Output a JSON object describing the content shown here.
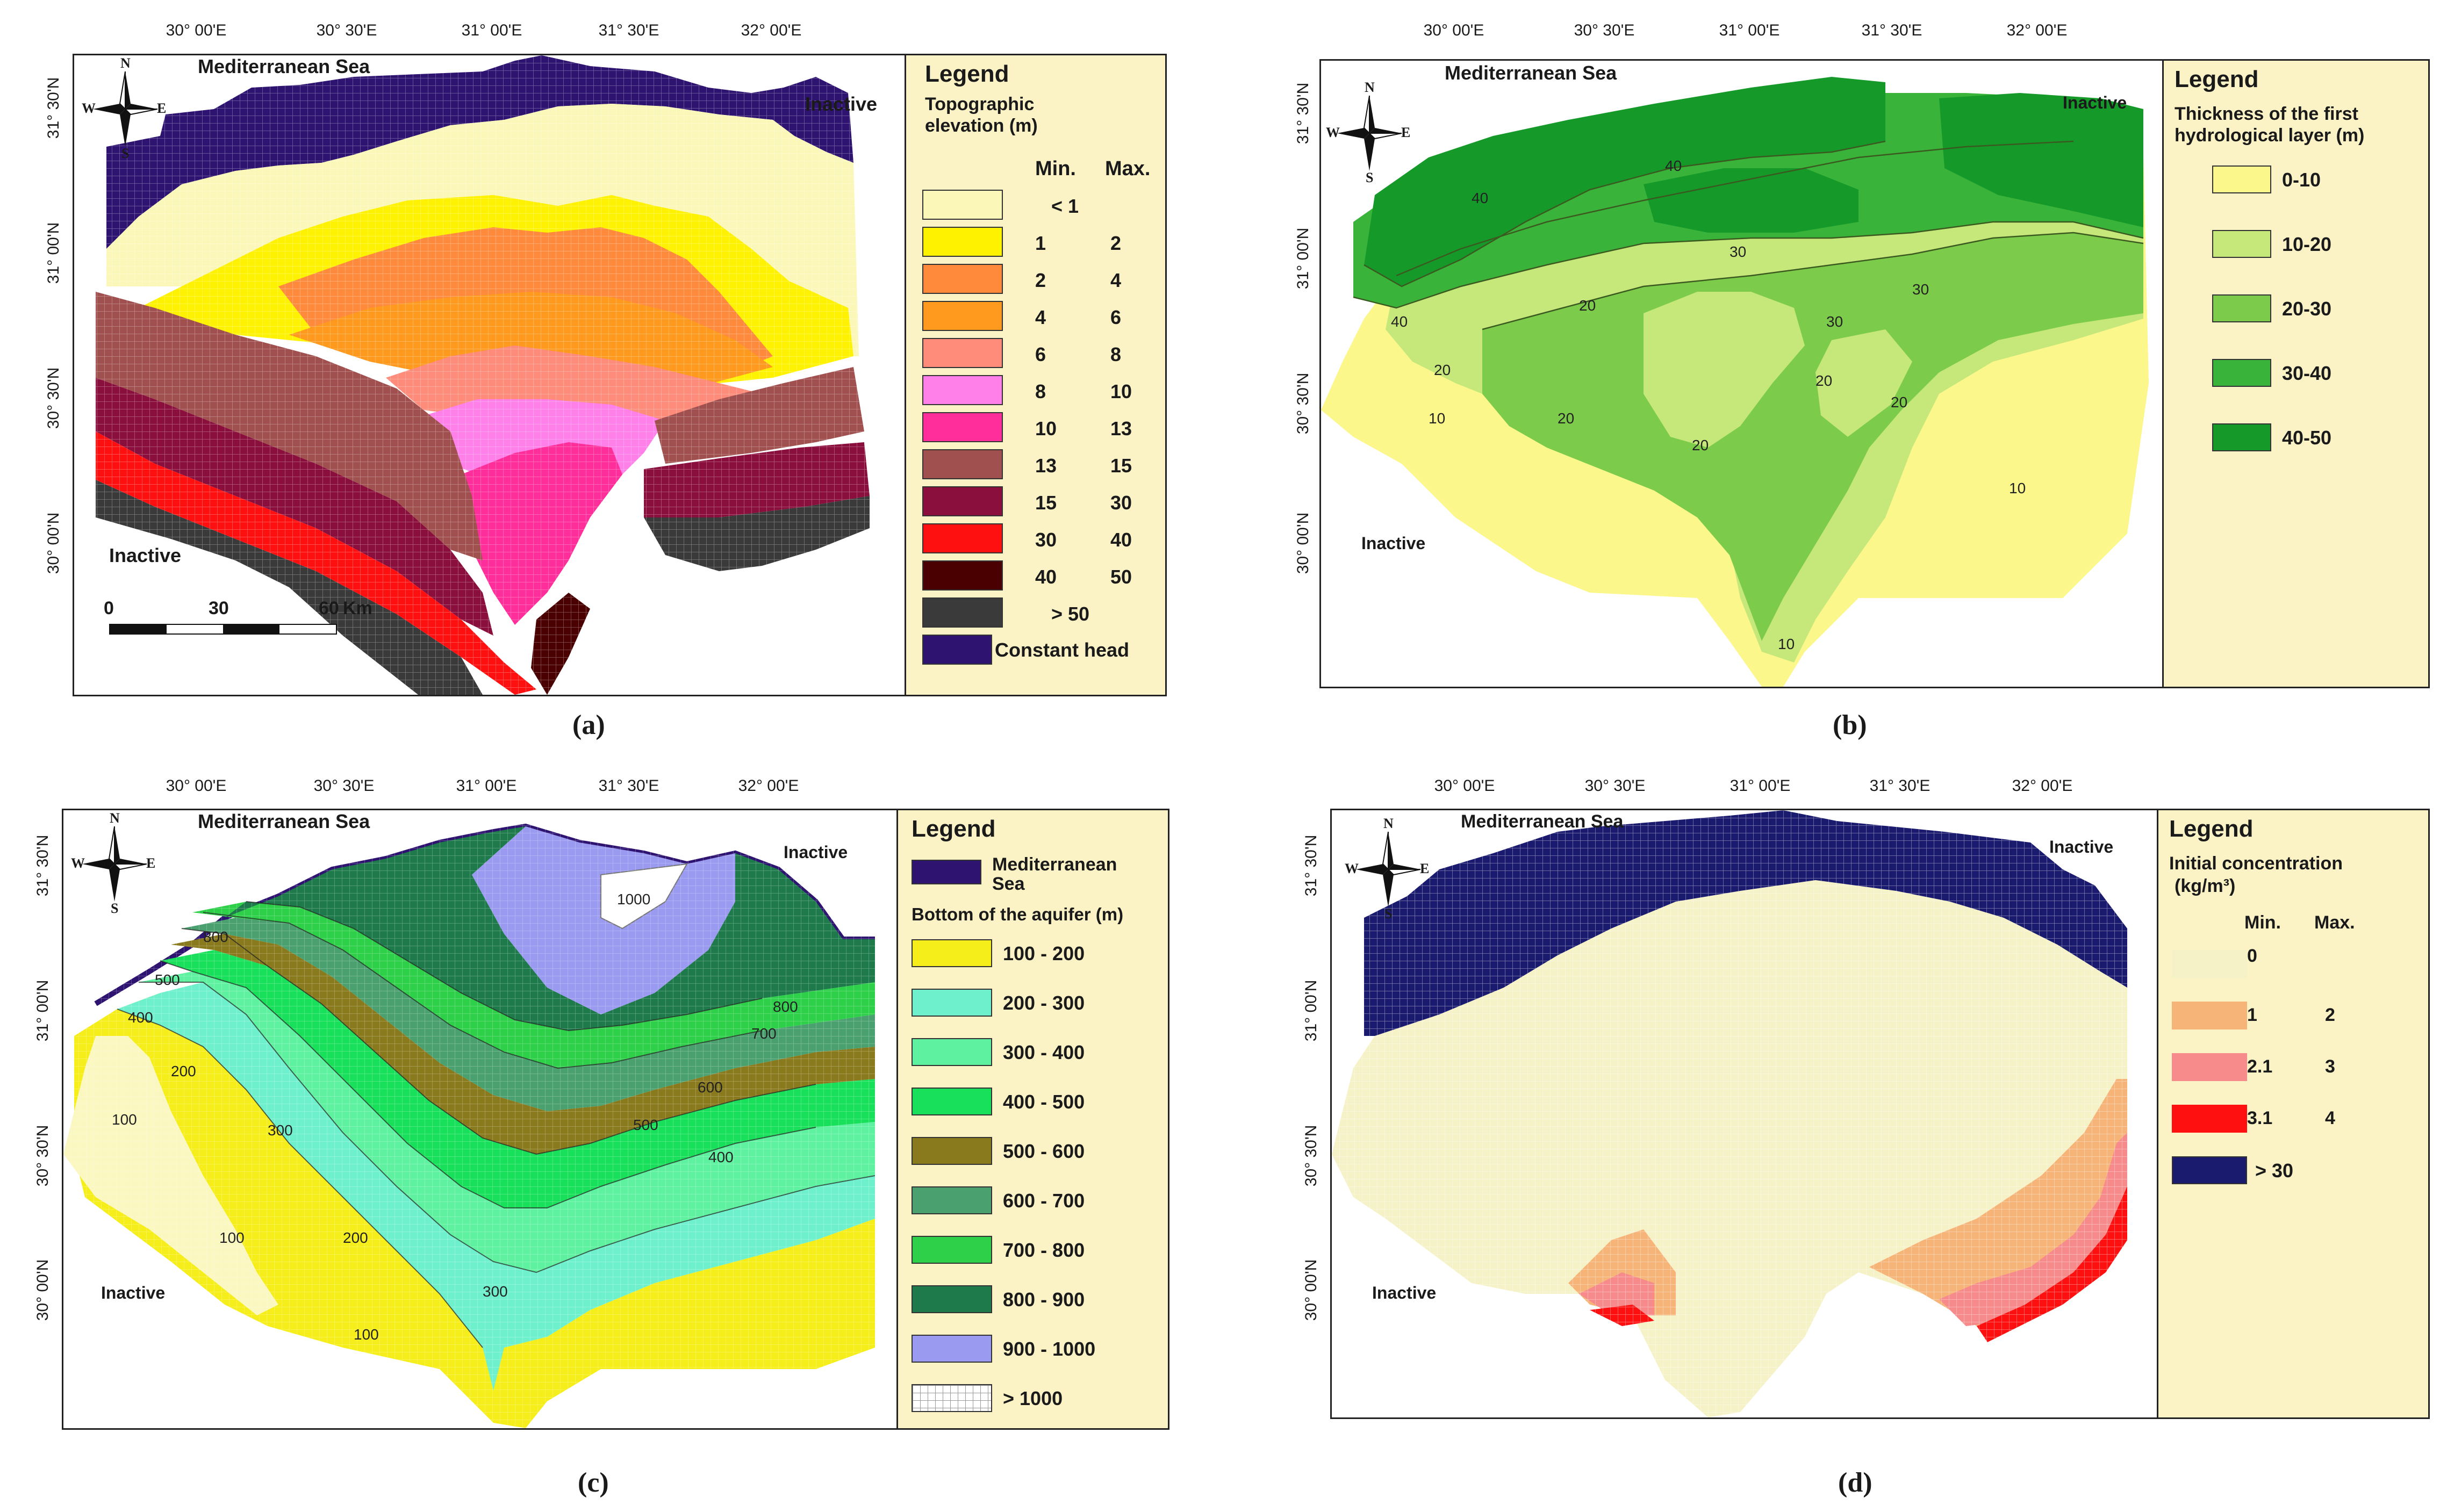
{
  "panels": [
    {
      "id": "a",
      "label": "(a)",
      "sea_label": "Mediterranean Sea",
      "inactive_top": "Inactive",
      "inactive_left": "Inactive",
      "lon_ticks": [
        "30° 00'E",
        "30° 30'E",
        "31° 00'E",
        "31° 30'E",
        "32° 00'E"
      ],
      "lat_ticks": [
        "31° 30'N",
        "31° 00'N",
        "30° 30'N",
        "30° 00'N"
      ],
      "scale": {
        "labels": [
          "0",
          "30",
          "60"
        ],
        "unit": "Km"
      },
      "legend": {
        "title": "Legend",
        "subtitle": [
          "Topographic",
          "elevation (m)"
        ],
        "col_min": "Min.",
        "col_max": "Max.",
        "items": [
          {
            "min": "< 1",
            "max": "",
            "color": "#fbf7b8"
          },
          {
            "min": "1",
            "max": "2",
            "color": "#fff200"
          },
          {
            "min": "2",
            "max": "4",
            "color": "#ff8a3c"
          },
          {
            "min": "4",
            "max": "6",
            "color": "#ff9a1f"
          },
          {
            "min": "6",
            "max": "8",
            "color": "#ff8c7a"
          },
          {
            "min": "8",
            "max": "10",
            "color": "#ff80e8"
          },
          {
            "min": "10",
            "max": "13",
            "color": "#ff2e9a"
          },
          {
            "min": "13",
            "max": "15",
            "color": "#a0504e"
          },
          {
            "min": "15",
            "max": "30",
            "color": "#8a0f3c"
          },
          {
            "min": "30",
            "max": "40",
            "color": "#ff1010"
          },
          {
            "min": "40",
            "max": "50",
            "color": "#4a0000"
          },
          {
            "min": "> 50",
            "max": "",
            "color": "#3a3a3a"
          },
          {
            "min": "Constant head",
            "max": "",
            "color": "#2e1470"
          }
        ]
      }
    },
    {
      "id": "b",
      "label": "(b)",
      "sea_label": "Mediterranean Sea",
      "inactive_top": "Inactive",
      "inactive_left": "Inactive",
      "lon_ticks": [
        "30° 00'E",
        "30° 30'E",
        "31° 00'E",
        "31° 30'E",
        "32° 00'E"
      ],
      "lat_ticks": [
        "31° 30'N",
        "31° 00'N",
        "30° 30'N",
        "30° 00'N"
      ],
      "contours": [
        "40",
        "40",
        "30",
        "30",
        "20",
        "20",
        "20",
        "20",
        "10",
        "10",
        "10",
        "20",
        "20",
        "30",
        "40"
      ],
      "legend": {
        "title": "Legend",
        "subtitle": [
          "Thickness of the first",
          "hydrological layer (m)"
        ],
        "items": [
          {
            "label": "0-10",
            "color": "#fbf78a"
          },
          {
            "label": "10-20",
            "color": "#c6e87a"
          },
          {
            "label": "20-30",
            "color": "#7ccb4a"
          },
          {
            "label": "30-40",
            "color": "#3ab33a"
          },
          {
            "label": "40-50",
            "color": "#159a2a"
          }
        ]
      }
    },
    {
      "id": "c",
      "label": "(c)",
      "sea_label": "Mediterranean Sea",
      "inactive_top": "Inactive",
      "inactive_left": "Inactive",
      "lon_ticks": [
        "30° 00'E",
        "30° 30'E",
        "31° 00'E",
        "31° 30'E",
        "32° 00'E"
      ],
      "lat_ticks": [
        "31° 30'N",
        "31° 00'N",
        "30° 30'N",
        "30° 00'N"
      ],
      "contours": [
        "100",
        "100",
        "100",
        "200",
        "200",
        "300",
        "300",
        "400",
        "400",
        "500",
        "500",
        "600",
        "700",
        "800",
        "800",
        "1000"
      ],
      "legend": {
        "title": "Legend",
        "sea_item": [
          "Mediterranean",
          "Sea"
        ],
        "sea_color": "#2e1470",
        "subtitle": "Bottom of the aquifer (m)",
        "items": [
          {
            "label": "100 - 200",
            "color": "#f5ee1a"
          },
          {
            "label": "200 - 300",
            "color": "#6ff0cc"
          },
          {
            "label": "300 - 400",
            "color": "#5ef2a0"
          },
          {
            "label": "400 - 500",
            "color": "#19e05a"
          },
          {
            "label": "500 - 600",
            "color": "#8a7a1e"
          },
          {
            "label": "600 - 700",
            "color": "#4aa06e"
          },
          {
            "label": "700 - 800",
            "color": "#2ed04a"
          },
          {
            "label": "800 - 900",
            "color": "#1e7a4a"
          },
          {
            "label": "900 - 1000",
            "color": "#9a9af0"
          },
          {
            "label": "> 1000",
            "color": "#ffffff"
          }
        ]
      }
    },
    {
      "id": "d",
      "label": "(d)",
      "sea_label": "Mediterranean Sea",
      "inactive_top": "Inactive",
      "inactive_left": "Inactive",
      "lon_ticks": [
        "30° 00'E",
        "30° 30'E",
        "31° 00'E",
        "31° 30'E",
        "32° 00'E"
      ],
      "lat_ticks": [
        "31° 30'N",
        "31° 00'N",
        "30° 30'N",
        "30° 00'N"
      ],
      "legend": {
        "title": "Legend",
        "subtitle": [
          "Initial concentration",
          "(kg/m³)"
        ],
        "col_min": "Min.",
        "col_max": "Max.",
        "items": [
          {
            "min": "0",
            "max": "",
            "color": "#f6f2c8"
          },
          {
            "min": "1",
            "max": "2",
            "color": "#f7b478"
          },
          {
            "min": "2.1",
            "max": "3",
            "color": "#f78a8a"
          },
          {
            "min": "3.1",
            "max": "4",
            "color": "#ff1010"
          },
          {
            "min": "> 30",
            "max": "",
            "color": "#1a1a6e"
          }
        ]
      }
    }
  ],
  "compass": {
    "n": "N",
    "s": "S",
    "e": "E",
    "w": "W"
  }
}
